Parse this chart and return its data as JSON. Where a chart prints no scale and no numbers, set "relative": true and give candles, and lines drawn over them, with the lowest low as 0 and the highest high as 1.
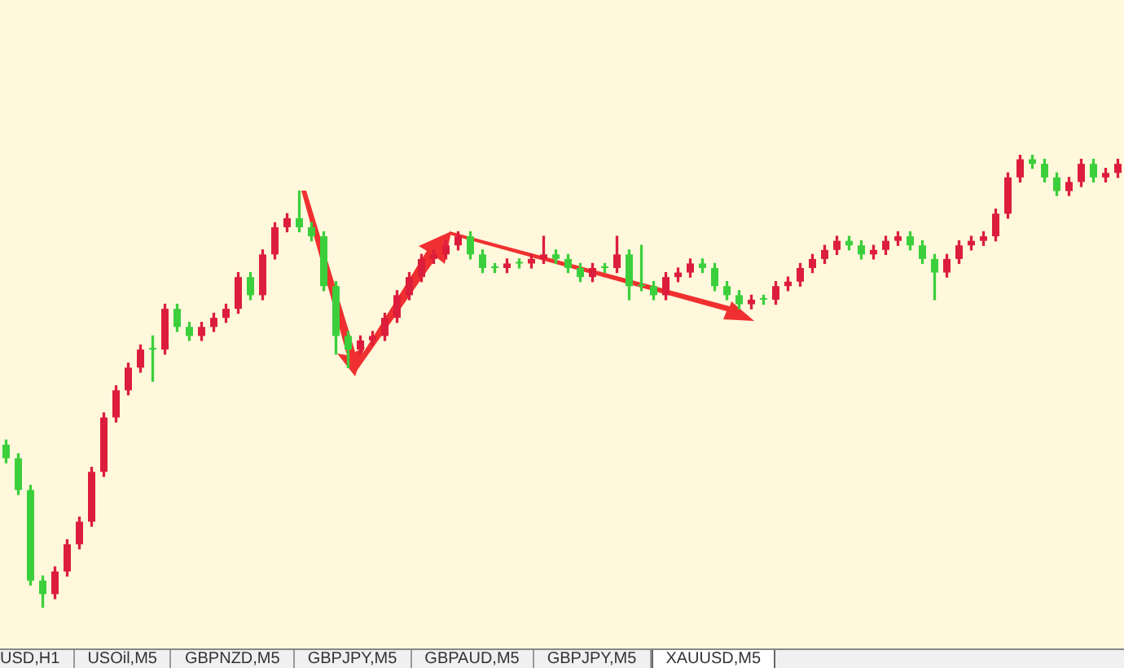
{
  "chart_data": {
    "type": "candlestick",
    "relative": true,
    "categories": [
      null,
      null,
      null,
      null,
      null,
      null,
      null,
      null,
      null,
      null,
      null,
      null,
      null,
      null,
      null,
      null,
      null,
      null,
      null,
      null,
      null,
      null,
      null,
      null,
      null,
      null,
      null,
      null,
      null,
      null,
      null,
      null,
      null,
      null,
      null,
      null,
      null,
      null,
      null,
      null,
      null,
      null,
      null,
      null,
      null,
      null,
      null,
      null,
      null,
      null,
      null,
      null,
      null,
      null,
      null,
      null,
      null,
      null,
      null,
      null,
      null,
      null,
      null,
      null,
      null,
      null,
      null,
      null,
      null,
      null,
      null,
      null,
      null,
      null,
      null,
      null,
      null,
      null,
      null,
      null,
      null,
      null,
      null,
      null,
      null,
      null,
      null,
      null,
      null,
      null,
      null,
      null
    ],
    "ohlc": [
      [
        0.36,
        0.37,
        0.32,
        0.33
      ],
      [
        0.33,
        0.34,
        0.25,
        0.26
      ],
      [
        0.26,
        0.27,
        0.05,
        0.06
      ],
      [
        0.06,
        0.07,
        0.0,
        0.03
      ],
      [
        0.03,
        0.09,
        0.02,
        0.08
      ],
      [
        0.08,
        0.15,
        0.07,
        0.14
      ],
      [
        0.14,
        0.2,
        0.13,
        0.19
      ],
      [
        0.19,
        0.31,
        0.18,
        0.3
      ],
      [
        0.3,
        0.43,
        0.29,
        0.42
      ],
      [
        0.42,
        0.49,
        0.41,
        0.48
      ],
      [
        0.48,
        0.54,
        0.47,
        0.53
      ],
      [
        0.53,
        0.58,
        0.52,
        0.57
      ],
      [
        0.57,
        0.6,
        0.5,
        0.57
      ],
      [
        0.57,
        0.67,
        0.56,
        0.66
      ],
      [
        0.66,
        0.67,
        0.61,
        0.62
      ],
      [
        0.62,
        0.63,
        0.59,
        0.6
      ],
      [
        0.6,
        0.63,
        0.59,
        0.62
      ],
      [
        0.62,
        0.65,
        0.61,
        0.64
      ],
      [
        0.64,
        0.67,
        0.63,
        0.66
      ],
      [
        0.66,
        0.74,
        0.65,
        0.73
      ],
      [
        0.73,
        0.74,
        0.68,
        0.69
      ],
      [
        0.69,
        0.79,
        0.68,
        0.78
      ],
      [
        0.78,
        0.85,
        0.77,
        0.84
      ],
      [
        0.84,
        0.87,
        0.83,
        0.86
      ],
      [
        0.86,
        0.92,
        0.83,
        0.84
      ],
      [
        0.84,
        0.85,
        0.81,
        0.82
      ],
      [
        0.82,
        0.83,
        0.7,
        0.71
      ],
      [
        0.71,
        0.72,
        0.56,
        0.6
      ],
      [
        0.6,
        0.61,
        0.53,
        0.57
      ],
      [
        0.57,
        0.6,
        0.56,
        0.59
      ],
      [
        0.59,
        0.61,
        0.58,
        0.6
      ],
      [
        0.6,
        0.65,
        0.59,
        0.64
      ],
      [
        0.64,
        0.7,
        0.63,
        0.69
      ],
      [
        0.69,
        0.74,
        0.68,
        0.73
      ],
      [
        0.73,
        0.78,
        0.72,
        0.77
      ],
      [
        0.77,
        0.79,
        0.76,
        0.78
      ],
      [
        0.78,
        0.81,
        0.77,
        0.8
      ],
      [
        0.8,
        0.83,
        0.79,
        0.82
      ],
      [
        0.82,
        0.83,
        0.77,
        0.78
      ],
      [
        0.78,
        0.79,
        0.74,
        0.75
      ],
      [
        0.75,
        0.76,
        0.74,
        0.75
      ],
      [
        0.75,
        0.77,
        0.74,
        0.76
      ],
      [
        0.76,
        0.77,
        0.75,
        0.76
      ],
      [
        0.76,
        0.78,
        0.75,
        0.77
      ],
      [
        0.77,
        0.82,
        0.76,
        0.78
      ],
      [
        0.78,
        0.79,
        0.76,
        0.77
      ],
      [
        0.77,
        0.78,
        0.74,
        0.75
      ],
      [
        0.75,
        0.76,
        0.72,
        0.73
      ],
      [
        0.73,
        0.76,
        0.72,
        0.75
      ],
      [
        0.75,
        0.76,
        0.74,
        0.75
      ],
      [
        0.75,
        0.82,
        0.74,
        0.78
      ],
      [
        0.78,
        0.79,
        0.68,
        0.71
      ],
      [
        0.71,
        0.8,
        0.7,
        0.71
      ],
      [
        0.71,
        0.72,
        0.68,
        0.69
      ],
      [
        0.69,
        0.74,
        0.68,
        0.73
      ],
      [
        0.73,
        0.75,
        0.72,
        0.74
      ],
      [
        0.74,
        0.77,
        0.73,
        0.76
      ],
      [
        0.76,
        0.77,
        0.74,
        0.75
      ],
      [
        0.75,
        0.76,
        0.7,
        0.71
      ],
      [
        0.71,
        0.72,
        0.68,
        0.69
      ],
      [
        0.69,
        0.7,
        0.66,
        0.67
      ],
      [
        0.67,
        0.69,
        0.66,
        0.68
      ],
      [
        0.68,
        0.69,
        0.67,
        0.68
      ],
      [
        0.68,
        0.72,
        0.67,
        0.71
      ],
      [
        0.71,
        0.73,
        0.7,
        0.72
      ],
      [
        0.72,
        0.76,
        0.71,
        0.75
      ],
      [
        0.75,
        0.78,
        0.74,
        0.77
      ],
      [
        0.77,
        0.8,
        0.76,
        0.79
      ],
      [
        0.79,
        0.82,
        0.78,
        0.81
      ],
      [
        0.81,
        0.82,
        0.79,
        0.8
      ],
      [
        0.8,
        0.81,
        0.77,
        0.78
      ],
      [
        0.78,
        0.8,
        0.77,
        0.79
      ],
      [
        0.79,
        0.82,
        0.78,
        0.81
      ],
      [
        0.81,
        0.83,
        0.8,
        0.82
      ],
      [
        0.82,
        0.83,
        0.79,
        0.8
      ],
      [
        0.8,
        0.81,
        0.76,
        0.77
      ],
      [
        0.77,
        0.78,
        0.68,
        0.74
      ],
      [
        0.74,
        0.78,
        0.73,
        0.77
      ],
      [
        0.77,
        0.81,
        0.76,
        0.8
      ],
      [
        0.8,
        0.82,
        0.79,
        0.81
      ],
      [
        0.81,
        0.83,
        0.8,
        0.82
      ],
      [
        0.82,
        0.88,
        0.81,
        0.87
      ],
      [
        0.87,
        0.96,
        0.86,
        0.95
      ],
      [
        0.95,
        1.0,
        0.94,
        0.99
      ],
      [
        0.99,
        1.0,
        0.97,
        0.98
      ],
      [
        0.98,
        0.99,
        0.94,
        0.95
      ],
      [
        0.95,
        0.96,
        0.91,
        0.92
      ],
      [
        0.92,
        0.95,
        0.91,
        0.94
      ],
      [
        0.94,
        0.99,
        0.93,
        0.98
      ],
      [
        0.98,
        0.99,
        0.94,
        0.95
      ],
      [
        0.95,
        0.97,
        0.94,
        0.96
      ],
      [
        0.96,
        0.99,
        0.95,
        0.98
      ]
    ],
    "colors": [
      "#3ccf3c",
      "#3ccf3c",
      "#3ccf3c",
      "#3ccf3c",
      "#dc1e3c",
      "#dc1e3c",
      "#dc1e3c",
      "#dc1e3c",
      "#dc1e3c",
      "#dc1e3c",
      "#dc1e3c",
      "#dc1e3c",
      "#3ccf3c",
      "#dc1e3c",
      "#3ccf3c",
      "#3ccf3c",
      "#dc1e3c",
      "#dc1e3c",
      "#dc1e3c",
      "#dc1e3c",
      "#3ccf3c",
      "#dc1e3c",
      "#dc1e3c",
      "#dc1e3c",
      "#3ccf3c",
      "#3ccf3c",
      "#3ccf3c",
      "#3ccf3c",
      "#3ccf3c",
      "#dc1e3c",
      "#dc1e3c",
      "#dc1e3c",
      "#dc1e3c",
      "#dc1e3c",
      "#dc1e3c",
      "#dc1e3c",
      "#dc1e3c",
      "#dc1e3c",
      "#3ccf3c",
      "#3ccf3c",
      "#3ccf3c",
      "#dc1e3c",
      "#3ccf3c",
      "#dc1e3c",
      "#dc1e3c",
      "#3ccf3c",
      "#3ccf3c",
      "#3ccf3c",
      "#dc1e3c",
      "#3ccf3c",
      "#dc1e3c",
      "#3ccf3c",
      "#3ccf3c",
      "#3ccf3c",
      "#dc1e3c",
      "#dc1e3c",
      "#dc1e3c",
      "#3ccf3c",
      "#3ccf3c",
      "#3ccf3c",
      "#3ccf3c",
      "#dc1e3c",
      "#3ccf3c",
      "#dc1e3c",
      "#dc1e3c",
      "#dc1e3c",
      "#dc1e3c",
      "#dc1e3c",
      "#dc1e3c",
      "#3ccf3c",
      "#3ccf3c",
      "#dc1e3c",
      "#dc1e3c",
      "#dc1e3c",
      "#3ccf3c",
      "#3ccf3c",
      "#3ccf3c",
      "#dc1e3c",
      "#dc1e3c",
      "#dc1e3c",
      "#dc1e3c",
      "#dc1e3c",
      "#dc1e3c",
      "#dc1e3c",
      "#3ccf3c",
      "#3ccf3c",
      "#3ccf3c",
      "#dc1e3c",
      "#dc1e3c",
      "#3ccf3c",
      "#dc1e3c",
      "#dc1e3c"
    ],
    "annotations": [
      "USD,H1",
      "USOil,M5",
      "GBPNZD,M5",
      "GBPJPY,M5",
      "GBPAUD,M5",
      "GBPJPY,M5",
      "XAUUSD,M5"
    ]
  }
}
